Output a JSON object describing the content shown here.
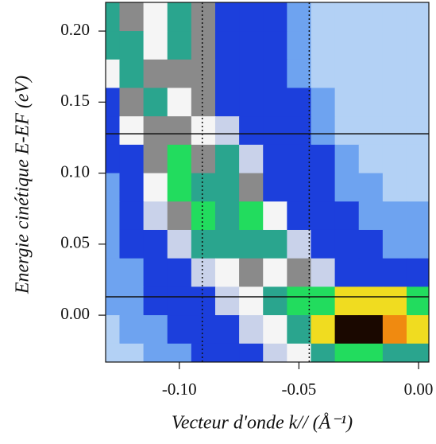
{
  "chart_data": {
    "type": "heatmap",
    "xlabel": "Vecteur d'onde k// (Å⁻¹)",
    "ylabel": "Energie cinétique  E-EF (eV)",
    "xlim": [
      -0.1308,
      0.0043
    ],
    "ylim": [
      -0.033,
      0.2202
    ],
    "xticks": [
      {
        "value": -0.1,
        "label": "-0.10"
      },
      -0.05,
      {
        "value": 0,
        "label": "0.00"
      }
    ],
    "yticks": [
      {
        "value": 0,
        "label": "0.00"
      },
      0.05,
      {
        "value": 0.1,
        "label": "0.10"
      },
      0.15,
      {
        "value": 0.2,
        "label": "0.20"
      }
    ],
    "x": [
      -0.13,
      -0.12,
      -0.11,
      -0.1,
      -0.09,
      -0.08,
      -0.07,
      -0.06,
      -0.05,
      -0.04,
      -0.03,
      -0.02,
      -0.01,
      0
    ],
    "y": [
      0.21,
      0.19,
      0.17,
      0.15,
      0.13,
      0.11,
      0.09,
      0.07,
      0.05,
      0.03,
      0.01,
      -0.01,
      -0.03
    ],
    "z": [
      [
        6,
        5,
        4,
        6,
        5,
        2,
        2,
        2,
        1,
        0,
        0,
        0,
        0,
        0
      ],
      [
        6,
        6,
        4,
        6,
        5,
        2,
        2,
        2,
        1,
        0,
        0,
        0,
        0,
        0
      ],
      [
        4,
        6,
        5,
        5,
        5,
        2,
        2,
        2,
        1,
        0,
        0,
        0,
        0,
        0
      ],
      [
        2,
        5,
        6,
        4,
        5,
        2,
        2,
        2,
        2,
        1,
        0,
        0,
        0,
        0
      ],
      [
        2,
        4,
        5,
        5,
        4,
        3,
        2,
        2,
        2,
        1,
        0,
        0,
        0,
        0
      ],
      [
        2,
        2,
        5,
        7,
        5,
        6,
        3,
        2,
        2,
        2,
        1,
        0,
        0,
        0
      ],
      [
        1,
        2,
        4,
        7,
        6,
        6,
        5,
        2,
        2,
        2,
        1,
        1,
        0,
        0
      ],
      [
        1,
        2,
        3,
        5,
        7,
        6,
        7,
        4,
        2,
        2,
        2,
        1,
        1,
        1
      ],
      [
        1,
        2,
        2,
        3,
        6,
        6,
        6,
        6,
        3,
        2,
        2,
        2,
        1,
        1
      ],
      [
        1,
        1,
        2,
        2,
        3,
        4,
        5,
        4,
        5,
        3,
        2,
        2,
        2,
        2
      ],
      [
        1,
        1,
        2,
        2,
        2,
        3,
        4,
        6,
        7,
        7,
        8,
        8,
        8,
        7
      ],
      [
        0,
        1,
        1,
        2,
        2,
        2,
        3,
        4,
        6,
        8,
        10,
        10,
        9,
        8
      ],
      [
        0,
        0,
        1,
        1,
        2,
        2,
        2,
        3,
        4,
        6,
        7,
        7,
        6,
        6
      ]
    ],
    "palette": [
      "#b3d1f5",
      "#6ea3f0",
      "#1c3fdc",
      "#c9d2ea",
      "#f5f5f5",
      "#8a8a8a",
      "#2aa58e",
      "#22dc5e",
      "#f0dc20",
      "#f08a10",
      "#1a0800"
    ],
    "hlines": [
      0.1277,
      0.0129
    ],
    "vlines": [
      -0.0904,
      -0.0457
    ]
  }
}
